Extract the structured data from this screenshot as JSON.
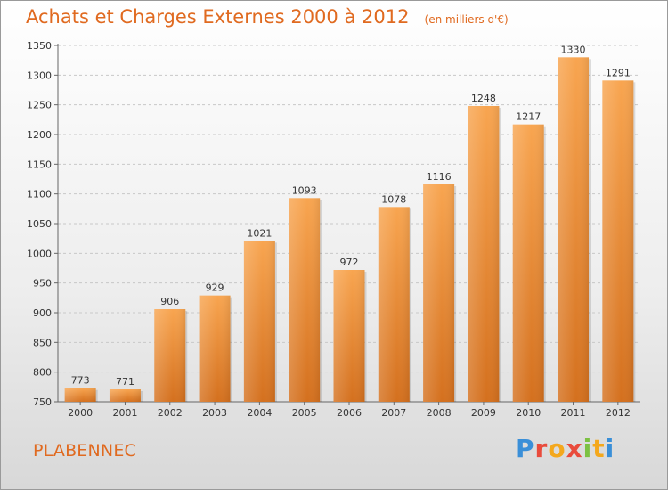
{
  "header": {
    "title": "Achats et Charges Externes 2000 à 2012",
    "subtitle": "(en milliers d'€)"
  },
  "footer": {
    "place": "PLABENNEC",
    "logo": {
      "letters": [
        "P",
        "r",
        "o",
        "x",
        "i",
        "t",
        "i"
      ]
    }
  },
  "colors": {
    "accent": "#e06a20",
    "bar_top": "#f8a550",
    "bar_bottom": "#d4701e"
  },
  "chart_data": {
    "type": "bar",
    "title": "Achats et Charges Externes 2000 à 2012",
    "subtitle": "(en milliers d'€)",
    "xlabel": "",
    "ylabel": "",
    "categories": [
      "2000",
      "2001",
      "2002",
      "2003",
      "2004",
      "2005",
      "2006",
      "2007",
      "2008",
      "2009",
      "2010",
      "2011",
      "2012"
    ],
    "values": [
      773,
      771,
      906,
      929,
      1021,
      1093,
      972,
      1078,
      1116,
      1248,
      1217,
      1330,
      1291
    ],
    "ylim": [
      750,
      1350
    ],
    "yticks": [
      750,
      800,
      850,
      900,
      950,
      1000,
      1050,
      1100,
      1150,
      1200,
      1250,
      1300,
      1350
    ],
    "grid": true,
    "data_labels": true
  }
}
